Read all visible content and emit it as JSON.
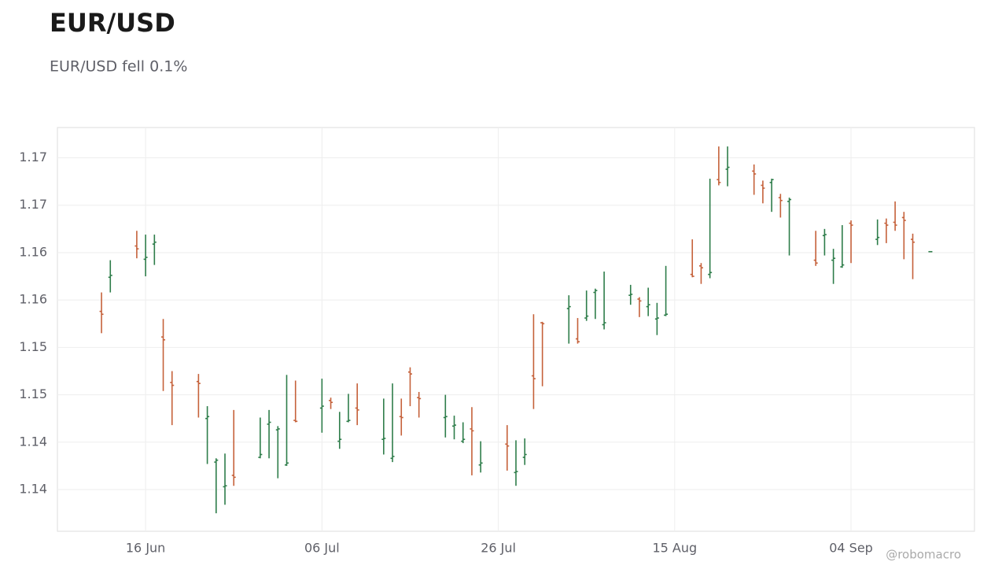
{
  "chart_data": {
    "type": "ohlc",
    "title": "EUR/USD",
    "subtitle": "EUR/USD fell 0.1%",
    "watermark": "@robomacro",
    "up_color": "#2e7d4a",
    "down_color": "#c5613a",
    "grid": true,
    "x": [
      "11 Jun",
      "12 Jun",
      "15 Jun",
      "16 Jun",
      "17 Jun",
      "18 Jun",
      "19 Jun",
      "22 Jun",
      "23 Jun",
      "24 Jun",
      "25 Jun",
      "26 Jun",
      "29 Jun",
      "30 Jun",
      "01 Jul",
      "02 Jul",
      "03 Jul",
      "06 Jul",
      "07 Jul",
      "08 Jul",
      "09 Jul",
      "10 Jul",
      "13 Jul",
      "14 Jul",
      "15 Jul",
      "16 Jul",
      "17 Jul",
      "20 Jul",
      "21 Jul",
      "22 Jul",
      "23 Jul",
      "24 Jul",
      "27 Jul",
      "28 Jul",
      "29 Jul",
      "30 Jul",
      "31 Jul",
      "03 Aug",
      "04 Aug",
      "05 Aug",
      "06 Aug",
      "07 Aug",
      "10 Aug",
      "11 Aug",
      "12 Aug",
      "13 Aug",
      "14 Aug",
      "17 Aug",
      "18 Aug",
      "19 Aug",
      "20 Aug",
      "21 Aug",
      "24 Aug",
      "25 Aug",
      "26 Aug",
      "27 Aug",
      "28 Aug",
      "31 Aug",
      "01 Sep",
      "02 Sep",
      "03 Sep",
      "04 Sep",
      "07 Sep",
      "08 Sep",
      "09 Sep",
      "10 Sep",
      "11 Sep",
      "13 Sep"
    ],
    "open": [
      1.1563,
      1.1599,
      1.1632,
      1.1618,
      1.1634,
      1.1536,
      1.1488,
      1.1489,
      1.145,
      1.1404,
      1.1378,
      1.139,
      1.1409,
      1.1444,
      1.1438,
      1.1401,
      1.1448,
      1.1461,
      1.1469,
      1.1426,
      1.1447,
      1.1461,
      1.1428,
      1.1408,
      1.1452,
      1.1499,
      1.1472,
      1.1451,
      1.1442,
      1.1426,
      1.1439,
      1.1401,
      1.1423,
      1.1393,
      1.1409,
      1.1495,
      1.1551,
      1.1566,
      1.1534,
      1.1556,
      1.1583,
      1.1549,
      1.158,
      1.1576,
      1.1568,
      1.1555,
      1.1559,
      1.1602,
      1.1611,
      1.1602,
      1.1702,
      1.1713,
      1.1711,
      1.1696,
      1.1699,
      1.1683,
      1.1679,
      1.1617,
      1.1643,
      1.1617,
      1.161,
      1.1656,
      1.1639,
      1.1656,
      1.1657,
      1.1662,
      1.1639,
      1.1626
    ],
    "high": [
      1.1583,
      1.1617,
      1.1648,
      1.1644,
      1.1644,
      1.1555,
      1.15,
      1.1497,
      1.1463,
      1.1408,
      1.1413,
      1.1459,
      1.1451,
      1.1459,
      1.1442,
      1.1496,
      1.149,
      1.1492,
      1.1472,
      1.1457,
      1.1476,
      1.1487,
      1.1471,
      1.1487,
      1.1471,
      1.1504,
      1.1478,
      1.1475,
      1.1453,
      1.1446,
      1.1462,
      1.1426,
      1.1443,
      1.1427,
      1.1429,
      1.156,
      1.1552,
      1.158,
      1.1556,
      1.1585,
      1.1587,
      1.1605,
      1.1591,
      1.1578,
      1.1588,
      1.1572,
      1.1611,
      1.1639,
      1.1614,
      1.1703,
      1.1737,
      1.1737,
      1.1718,
      1.1701,
      1.1703,
      1.1687,
      1.1683,
      1.1648,
      1.165,
      1.1629,
      1.1654,
      1.1659,
      1.166,
      1.1661,
      1.1679,
      1.1668,
      1.1645,
      1.1626
    ],
    "low": [
      1.154,
      1.1583,
      1.1619,
      1.16,
      1.1612,
      1.1479,
      1.1443,
      1.1451,
      1.1402,
      1.135,
      1.1359,
      1.1379,
      1.1408,
      1.1408,
      1.1387,
      1.14,
      1.1446,
      1.1435,
      1.146,
      1.1418,
      1.1446,
      1.1443,
      1.1412,
      1.1404,
      1.1432,
      1.1463,
      1.1451,
      1.143,
      1.1428,
      1.1424,
      1.139,
      1.1393,
      1.1395,
      1.1379,
      1.1401,
      1.146,
      1.1484,
      1.1529,
      1.1529,
      1.1553,
      1.1555,
      1.1544,
      1.157,
      1.1557,
      1.1558,
      1.1538,
      1.1558,
      1.1599,
      1.1592,
      1.1598,
      1.1696,
      1.1695,
      1.1686,
      1.1677,
      1.1668,
      1.1662,
      1.1622,
      1.1611,
      1.1622,
      1.1592,
      1.1609,
      1.1614,
      1.1633,
      1.1635,
      1.1648,
      1.1618,
      1.1597,
      1.1626
    ],
    "close": [
      1.156,
      1.1601,
      1.1629,
      1.162,
      1.1636,
      1.1533,
      1.1485,
      1.1487,
      1.1452,
      1.1406,
      1.1379,
      1.1388,
      1.1412,
      1.1446,
      1.1439,
      1.1403,
      1.1447,
      1.1463,
      1.1467,
      1.1428,
      1.1448,
      1.1459,
      1.1429,
      1.141,
      1.1451,
      1.1497,
      1.1471,
      1.1452,
      1.1443,
      1.1428,
      1.1437,
      1.1403,
      1.1421,
      1.1394,
      1.1412,
      1.1492,
      1.155,
      1.1568,
      1.1531,
      1.1558,
      1.1585,
      1.1551,
      1.1581,
      1.1574,
      1.157,
      1.1556,
      1.156,
      1.16,
      1.1609,
      1.1604,
      1.1699,
      1.1715,
      1.1708,
      1.1693,
      1.1702,
      1.168,
      1.1681,
      1.1614,
      1.1644,
      1.1619,
      1.1612,
      1.1654,
      1.1641,
      1.1654,
      1.1654,
      1.1659,
      1.1636,
      1.1626
    ],
    "xlim": [
      "06 Jun",
      "18 Sep"
    ],
    "xticks": [
      "16 Jun",
      "06 Jul",
      "26 Jul",
      "15 Aug",
      "04 Sep"
    ],
    "ylim": [
      1.1331,
      1.1757
    ],
    "yticks": [
      {
        "value": 1.1375,
        "label": "1.14"
      },
      {
        "value": 1.1425,
        "label": "1.14"
      },
      {
        "value": 1.1475,
        "label": "1.15"
      },
      {
        "value": 1.1525,
        "label": "1.15"
      },
      {
        "value": 1.1575,
        "label": "1.16"
      },
      {
        "value": 1.1625,
        "label": "1.16"
      },
      {
        "value": 1.1675,
        "label": "1.17"
      },
      {
        "value": 1.1725,
        "label": "1.17"
      }
    ]
  }
}
